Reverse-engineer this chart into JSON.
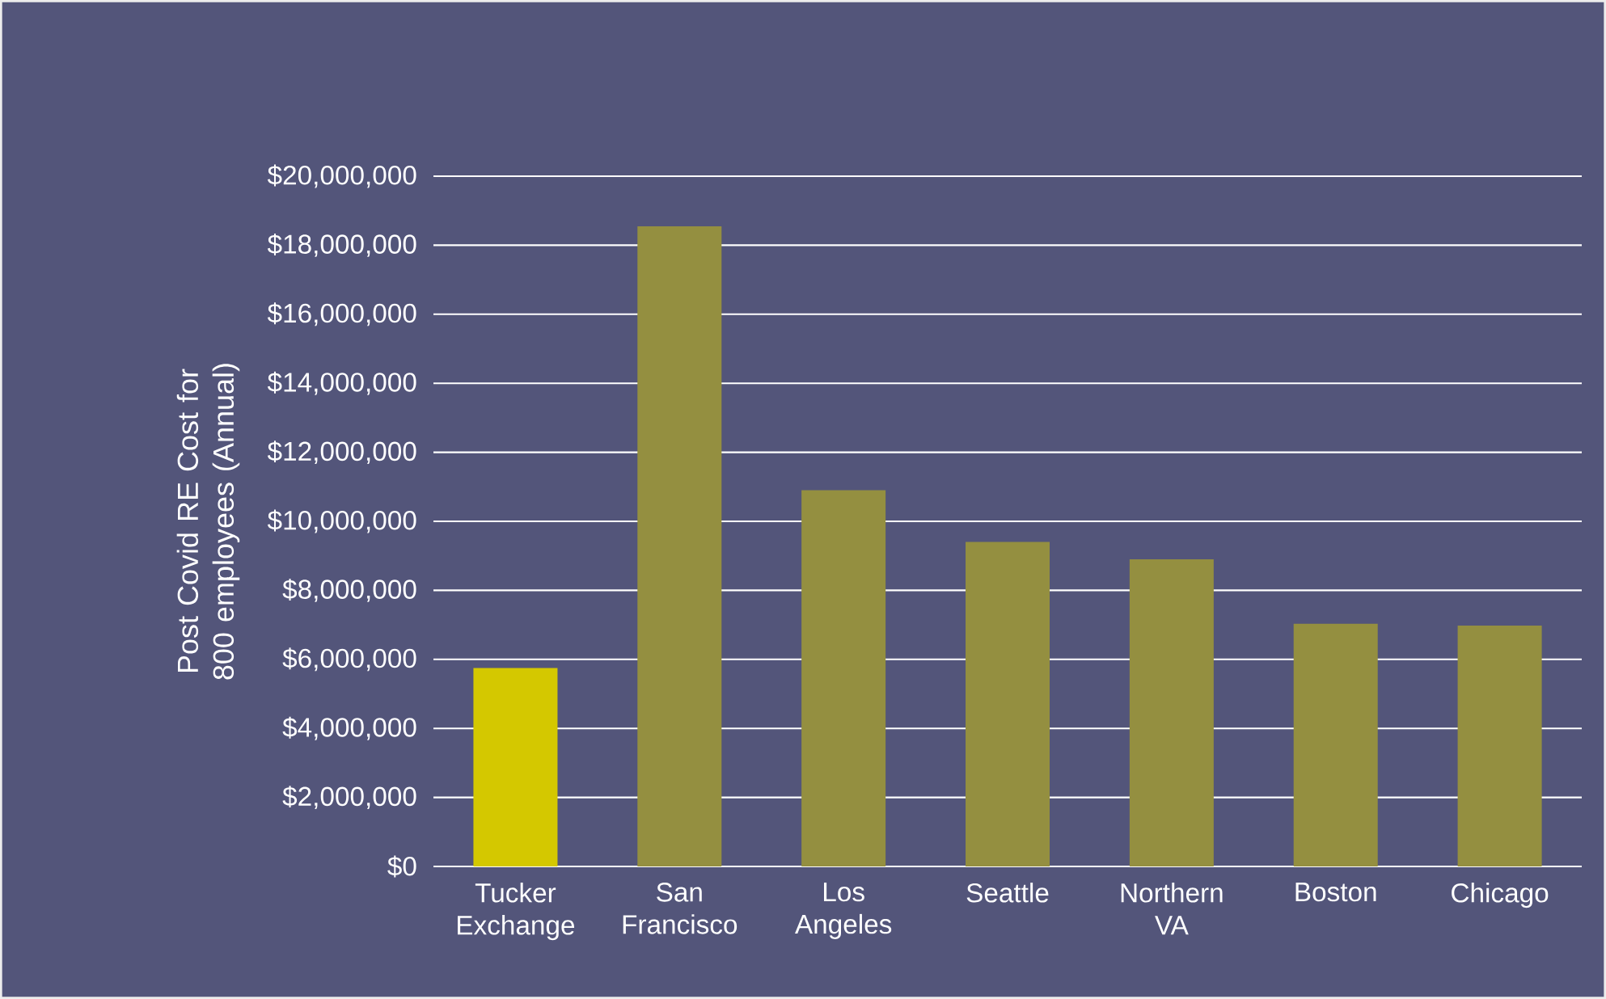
{
  "chart_data": {
    "type": "bar",
    "ylabel": "Post Covid RE Cost for 800 employees (Annual)",
    "categories": [
      "Tucker Exchange",
      "San Francisco",
      "Los Angeles",
      "Seattle",
      "Northern VA",
      "Boston",
      "Chicago"
    ],
    "values": [
      5750000,
      18550000,
      10900000,
      9400000,
      8900000,
      7030000,
      6980000
    ],
    "colors": [
      "#d4c800",
      "#948f40",
      "#948f40",
      "#948f40",
      "#948f40",
      "#948f40",
      "#948f40"
    ],
    "ylim": [
      0,
      20000000
    ],
    "yticks": [
      {
        "value": 0,
        "label": "$0"
      },
      {
        "value": 2000000,
        "label": "$2,000,000"
      },
      {
        "value": 4000000,
        "label": "$4,000,000"
      },
      {
        "value": 6000000,
        "label": "$6,000,000"
      },
      {
        "value": 8000000,
        "label": "$8,000,000"
      },
      {
        "value": 10000000,
        "label": "$10,000,000"
      },
      {
        "value": 12000000,
        "label": "$12,000,000"
      },
      {
        "value": 14000000,
        "label": "$14,000,000"
      },
      {
        "value": 16000000,
        "label": "$16,000,000"
      },
      {
        "value": 18000000,
        "label": "$18,000,000"
      },
      {
        "value": 20000000,
        "label": "$20,000,000"
      }
    ],
    "grid": "y"
  }
}
